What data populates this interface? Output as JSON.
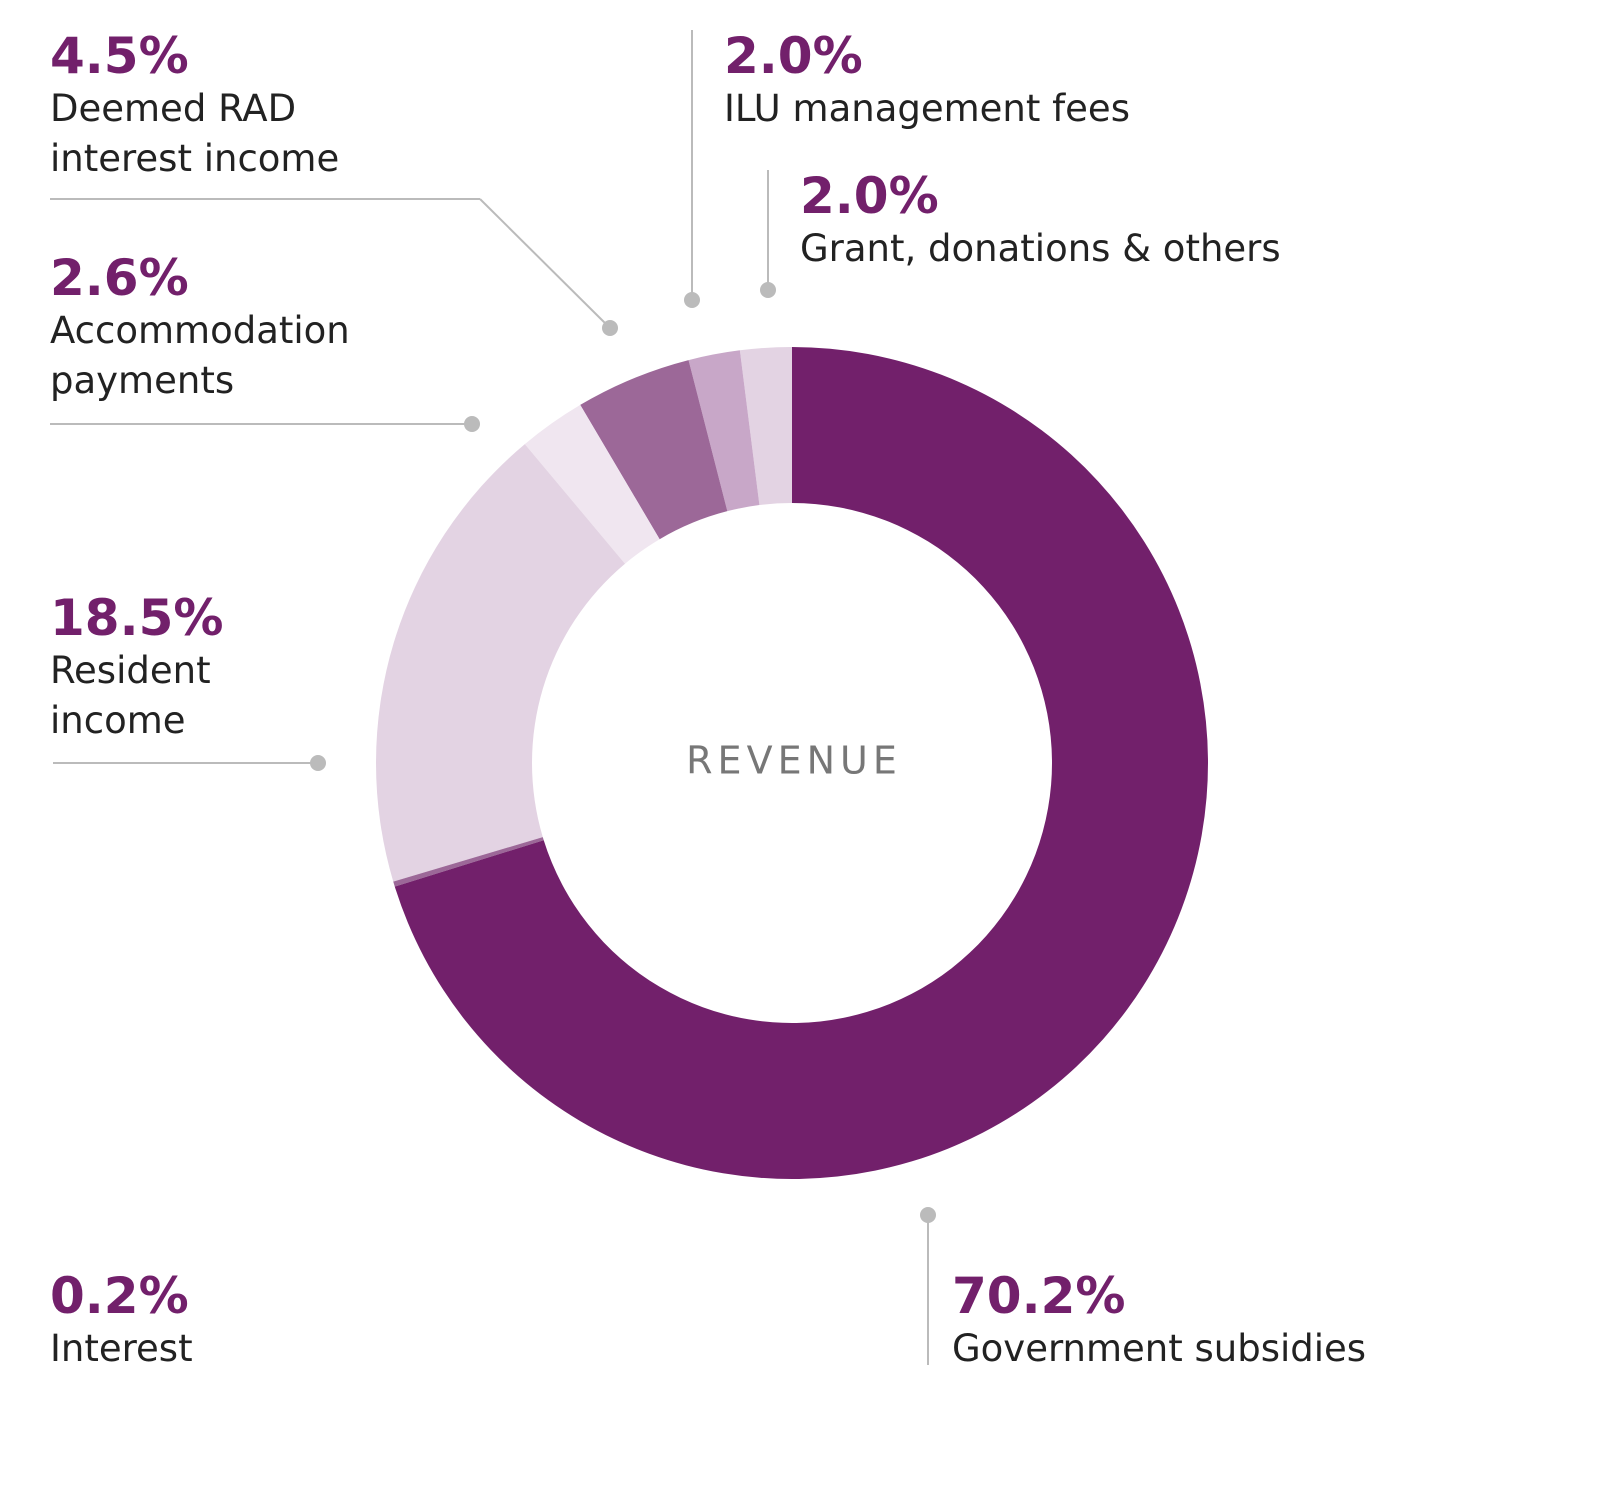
{
  "chart_data": {
    "type": "donut",
    "center_label": "REVENUE",
    "categories": [
      "Government subsidies",
      "Interest",
      "Resident income",
      "Accommodation payments",
      "Deemed RAD interest income",
      "ILU management fees",
      "Grant, donations & others"
    ],
    "values": [
      70.2,
      0.2,
      18.5,
      2.6,
      4.5,
      2.0,
      2.0
    ],
    "value_labels": [
      "70.2%",
      "0.2%",
      "18.5%",
      "2.6%",
      "4.5%",
      "2.0%",
      "2.0%"
    ],
    "colors": [
      "#72206b",
      "#9c6898",
      "#e3d3e3",
      "#f0e6f0",
      "#9c6898",
      "#c8a7c8",
      "#e3d3e3"
    ]
  }
}
